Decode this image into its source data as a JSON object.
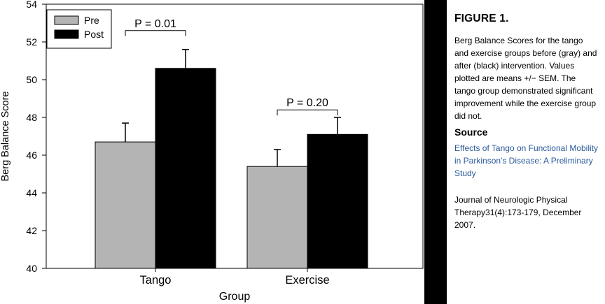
{
  "chart_data": {
    "type": "bar",
    "xlabel": "Group",
    "ylabel": "Berg Balance Score",
    "ylim": [
      40,
      54
    ],
    "yticks": [
      40,
      42,
      44,
      46,
      48,
      50,
      52,
      54
    ],
    "categories": [
      "Tango",
      "Exercise"
    ],
    "series": [
      {
        "name": "Pre",
        "color": "#b4b4b4",
        "values": [
          46.7,
          45.4
        ],
        "errors": [
          1.0,
          0.9
        ]
      },
      {
        "name": "Post",
        "color": "#000000",
        "values": [
          50.6,
          47.1
        ],
        "errors": [
          1.0,
          0.9
        ]
      }
    ],
    "legend": {
      "position": "top-left"
    },
    "annotations": [
      {
        "category": "Tango",
        "text": "P = 0.01",
        "y": 52.6
      },
      {
        "category": "Exercise",
        "text": "P = 0.20",
        "y": 48.4
      }
    ]
  },
  "caption": {
    "title": "FIGURE 1.",
    "description": "Berg Balance Scores for the tango and exercise groups before (gray) and after (black) intervention. Values plotted are means +/− SEM. The tango group demonstrated significant improvement while the exercise group did not.",
    "source_heading": "Source",
    "source_link": "Effects of Tango on Functional Mobility in Parkinson's Disease: A Preliminary Study",
    "citation": "Journal of Neurologic Physical Therapy31(4):173-179, December 2007."
  }
}
